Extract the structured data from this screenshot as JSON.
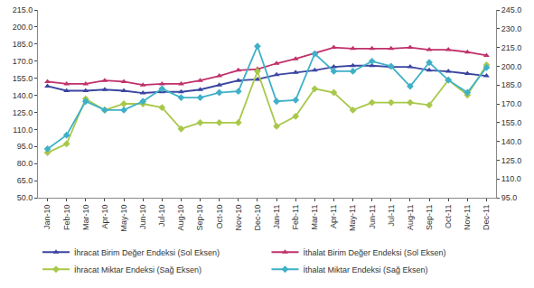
{
  "chart_data": {
    "type": "line",
    "categories": [
      "Jan-10",
      "Feb-10",
      "Mar-10",
      "Apr-10",
      "May-10",
      "Jun-10",
      "Jul-10",
      "Aug-10",
      "Sep-10",
      "Oct-10",
      "Nov-10",
      "Dec-10",
      "Jan-11",
      "Feb-11",
      "Mar-11",
      "Apr-11",
      "May-11",
      "Jun-11",
      "Jul-11",
      "Aug-11",
      "Sep-11",
      "Oct-11",
      "Nov-11",
      "Dec-11"
    ],
    "series": [
      {
        "name": "İhracat Birim Değer Endeksi (Sol Eksen)",
        "color": "#3a45a0",
        "marker": "triangle-up",
        "axis": "y",
        "values": [
          148,
          144,
          144,
          145,
          144,
          142,
          143,
          143,
          145,
          149,
          153,
          154,
          158,
          160,
          162,
          165,
          166,
          166,
          165,
          165,
          162,
          161,
          159,
          157
        ]
      },
      {
        "name": "İthalat Birim Değer Endeksi (Sol Eksen)",
        "color": "#c0306a",
        "marker": "triangle-up",
        "axis": "y",
        "values": [
          152,
          150,
          150,
          153,
          152,
          149,
          150,
          150,
          153,
          157,
          162,
          163,
          168,
          172,
          177,
          182,
          181,
          181,
          181,
          182,
          180,
          180,
          178,
          175
        ]
      },
      {
        "name": "İhracat Miktar Endeksi (Sağ Eksen)",
        "color": "#a8c84a",
        "marker": "diamond",
        "axis": "y2",
        "values": [
          131,
          138,
          174,
          165,
          170,
          170,
          167,
          150,
          155,
          155,
          155,
          196,
          152,
          160,
          182,
          179,
          165,
          171,
          171,
          171,
          169,
          189,
          177,
          201
        ]
      },
      {
        "name": "İthalat Miktar Endeksi (Sağ Eksen)",
        "color": "#3fb0c8",
        "marker": "diamond",
        "axis": "y2",
        "values": [
          134,
          145,
          172,
          165,
          165,
          172,
          182,
          175,
          175,
          179,
          180,
          216,
          172,
          173,
          210,
          196,
          196,
          204,
          200,
          184,
          203,
          189,
          179,
          199
        ]
      }
    ],
    "ylim": [
      50,
      215
    ],
    "yticks": [
      {
        "value": 50,
        "label": "50.0"
      },
      {
        "value": 65,
        "label": "65.0"
      },
      {
        "value": 80,
        "label": "80.0"
      },
      {
        "value": 95,
        "label": "95.0"
      },
      {
        "value": 110,
        "label": "110.0"
      },
      {
        "value": 125,
        "label": "125.0"
      },
      {
        "value": 140,
        "label": "140.0"
      },
      {
        "value": 155,
        "label": "155.0"
      },
      {
        "value": 170,
        "label": "170.0"
      },
      {
        "value": 185,
        "label": "185.0"
      },
      {
        "value": 200,
        "label": "200.0"
      },
      {
        "value": 215,
        "label": "215.0"
      }
    ],
    "y2lim": [
      95,
      245
    ],
    "y2ticks": [
      {
        "value": 95,
        "label": "95.0"
      },
      {
        "value": 110,
        "label": "110.0"
      },
      {
        "value": 125,
        "label": "125.0"
      },
      {
        "value": 140,
        "label": "140.0"
      },
      {
        "value": 155,
        "label": "155.0"
      },
      {
        "value": 170,
        "label": "170.0"
      },
      {
        "value": 185,
        "label": "185.0"
      },
      {
        "value": 200,
        "label": "200.0"
      },
      {
        "value": 215,
        "label": "215.0"
      },
      {
        "value": 230,
        "label": "230.0"
      },
      {
        "value": 245,
        "label": "245.0"
      }
    ],
    "grid": false,
    "legend": "bottom"
  }
}
